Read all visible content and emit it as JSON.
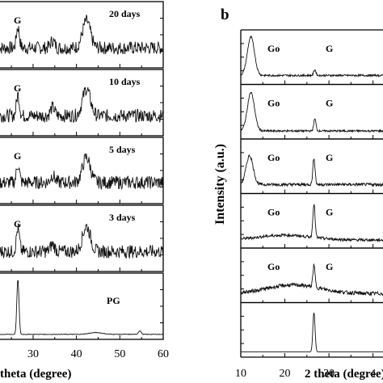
{
  "chart_data": [
    {
      "type": "line",
      "panel": "a",
      "xlabel": "theta (degree)",
      "xlim": [
        22,
        60
      ],
      "x_ticks": [
        "30",
        "40",
        "50",
        "60"
      ],
      "series": [
        {
          "name": "20 days",
          "peak_label": "G",
          "noise": 0.22,
          "baseline": 0.28,
          "peaks": [
            {
              "x": 26.5,
              "h": 0.35,
              "w": 0.35
            },
            {
              "x": 42.3,
              "h": 0.45,
              "w": 0.9
            },
            {
              "x": 34.5,
              "h": 0.12,
              "w": 0.5
            }
          ]
        },
        {
          "name": "10 days",
          "peak_label": "G",
          "noise": 0.22,
          "baseline": 0.28,
          "peaks": [
            {
              "x": 26.5,
              "h": 0.35,
              "w": 0.35
            },
            {
              "x": 42.3,
              "h": 0.45,
              "w": 0.9
            },
            {
              "x": 34.5,
              "h": 0.14,
              "w": 0.5
            }
          ]
        },
        {
          "name": "5 days",
          "peak_label": "G",
          "noise": 0.22,
          "baseline": 0.3,
          "peaks": [
            {
              "x": 26.5,
              "h": 0.3,
              "w": 0.35
            },
            {
              "x": 42.3,
              "h": 0.42,
              "w": 0.9
            },
            {
              "x": 34.5,
              "h": 0.12,
              "w": 0.5
            }
          ]
        },
        {
          "name": "3 days",
          "peak_label": "G",
          "noise": 0.22,
          "baseline": 0.28,
          "peaks": [
            {
              "x": 26.5,
              "h": 0.38,
              "w": 0.35
            },
            {
              "x": 42.3,
              "h": 0.42,
              "w": 0.9
            },
            {
              "x": 34.5,
              "h": 0.12,
              "w": 0.5
            }
          ]
        },
        {
          "name": "PG",
          "peak_label": "",
          "noise": 0.01,
          "baseline": 0.03,
          "peaks": [
            {
              "x": 26.5,
              "h": 0.92,
              "w": 0.25
            },
            {
              "x": 54.6,
              "h": 0.06,
              "w": 0.3
            },
            {
              "x": 44.5,
              "h": 0.03,
              "w": 1.5
            }
          ]
        }
      ]
    },
    {
      "type": "line",
      "panel": "b",
      "panel_label": "b",
      "xlabel": "2 theta (degree)",
      "ylabel": "Intensity (a.u.)",
      "xlim": [
        10,
        43
      ],
      "x_ticks": [
        "10",
        "20",
        "30",
        "4"
      ],
      "series": [
        {
          "name": "",
          "peak_labels": [
            "Go",
            "G"
          ],
          "noise": 0.04,
          "baseline": 0.12,
          "peaks": [
            {
              "x": 12.3,
              "h": 0.8,
              "w": 0.8
            },
            {
              "x": 26.8,
              "h": 0.12,
              "w": 0.25
            }
          ]
        },
        {
          "name": "",
          "peak_labels": [
            "Go",
            "G"
          ],
          "noise": 0.04,
          "baseline": 0.1,
          "peaks": [
            {
              "x": 12.3,
              "h": 0.8,
              "w": 0.8
            },
            {
              "x": 26.8,
              "h": 0.25,
              "w": 0.25
            }
          ]
        },
        {
          "name": "",
          "peak_labels": [
            "Go",
            "G"
          ],
          "noise": 0.06,
          "baseline": 0.12,
          "peaks": [
            {
              "x": 12.0,
              "h": 0.6,
              "w": 0.8
            },
            {
              "x": 26.6,
              "h": 0.55,
              "w": 0.25
            }
          ]
        },
        {
          "name": "",
          "peak_labels": [
            "Go",
            "G"
          ],
          "noise": 0.06,
          "baseline": 0.1,
          "peaks": [
            {
              "x": 26.6,
              "h": 0.7,
              "w": 0.25
            },
            {
              "x": 20.0,
              "h": 0.1,
              "w": 6.0
            }
          ]
        },
        {
          "name": "",
          "peak_labels": [
            "Go",
            "G"
          ],
          "noise": 0.08,
          "baseline": 0.12,
          "peaks": [
            {
              "x": 26.6,
              "h": 0.45,
              "w": 0.25
            },
            {
              "x": 22.0,
              "h": 0.18,
              "w": 6.0
            }
          ]
        },
        {
          "name": "",
          "peak_labels": [],
          "noise": 0.0,
          "baseline": 0.04,
          "peaks": [
            {
              "x": 26.6,
              "h": 0.82,
              "w": 0.25
            }
          ]
        }
      ]
    }
  ]
}
